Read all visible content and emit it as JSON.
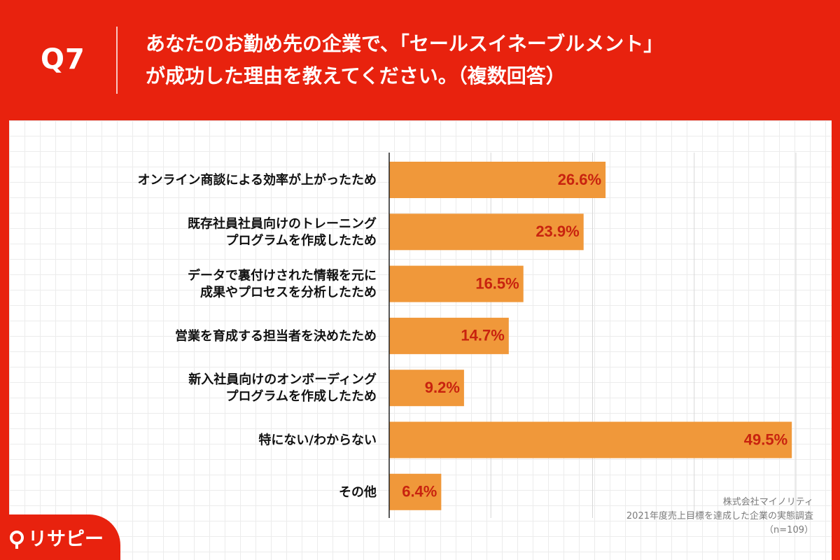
{
  "header": {
    "question_number": "Q7",
    "title_line1": "あなたのお勤め先の企業で、「セールスイネーブルメント」",
    "title_line2": "が成功した理由を教えてください。（複数回答）"
  },
  "source": {
    "line1": "株式会社マイノリティ",
    "line2": "2021年度売上目標を達成した企業の実態調査",
    "line3": "（n=109）"
  },
  "logo": {
    "text": "リサピー"
  },
  "colors": {
    "background": "#e8220e",
    "bar": "#f0983a",
    "value_label": "#c8230f",
    "category_label": "#111111",
    "gridline": "#d7d7d7",
    "axis": "#222222"
  },
  "chart_data": {
    "type": "bar",
    "orientation": "horizontal",
    "categories": [
      [
        "オンライン商談による効率が上がったため"
      ],
      [
        "既存社員社員向けのトレーニング",
        "プログラムを作成したため"
      ],
      [
        "データで裏付けされた情報を元に",
        "成果やプロセスを分析したため"
      ],
      [
        "営業を育成する担当者を決めたため"
      ],
      [
        "新入社員向けのオンボーディング",
        "プログラムを作成したため"
      ],
      [
        "特にない/わからない"
      ],
      [
        "その他"
      ]
    ],
    "values": [
      26.6,
      23.9,
      16.5,
      14.7,
      9.2,
      49.5,
      6.4
    ],
    "value_labels": [
      "26.6%",
      "23.9%",
      "16.5%",
      "14.7%",
      "9.2%",
      "49.5%",
      "6.4%"
    ],
    "unit": "%",
    "xlim": [
      0,
      50
    ],
    "gridlines": [
      0,
      12.5,
      25,
      37.5,
      50
    ],
    "grid": true,
    "legend": false
  }
}
